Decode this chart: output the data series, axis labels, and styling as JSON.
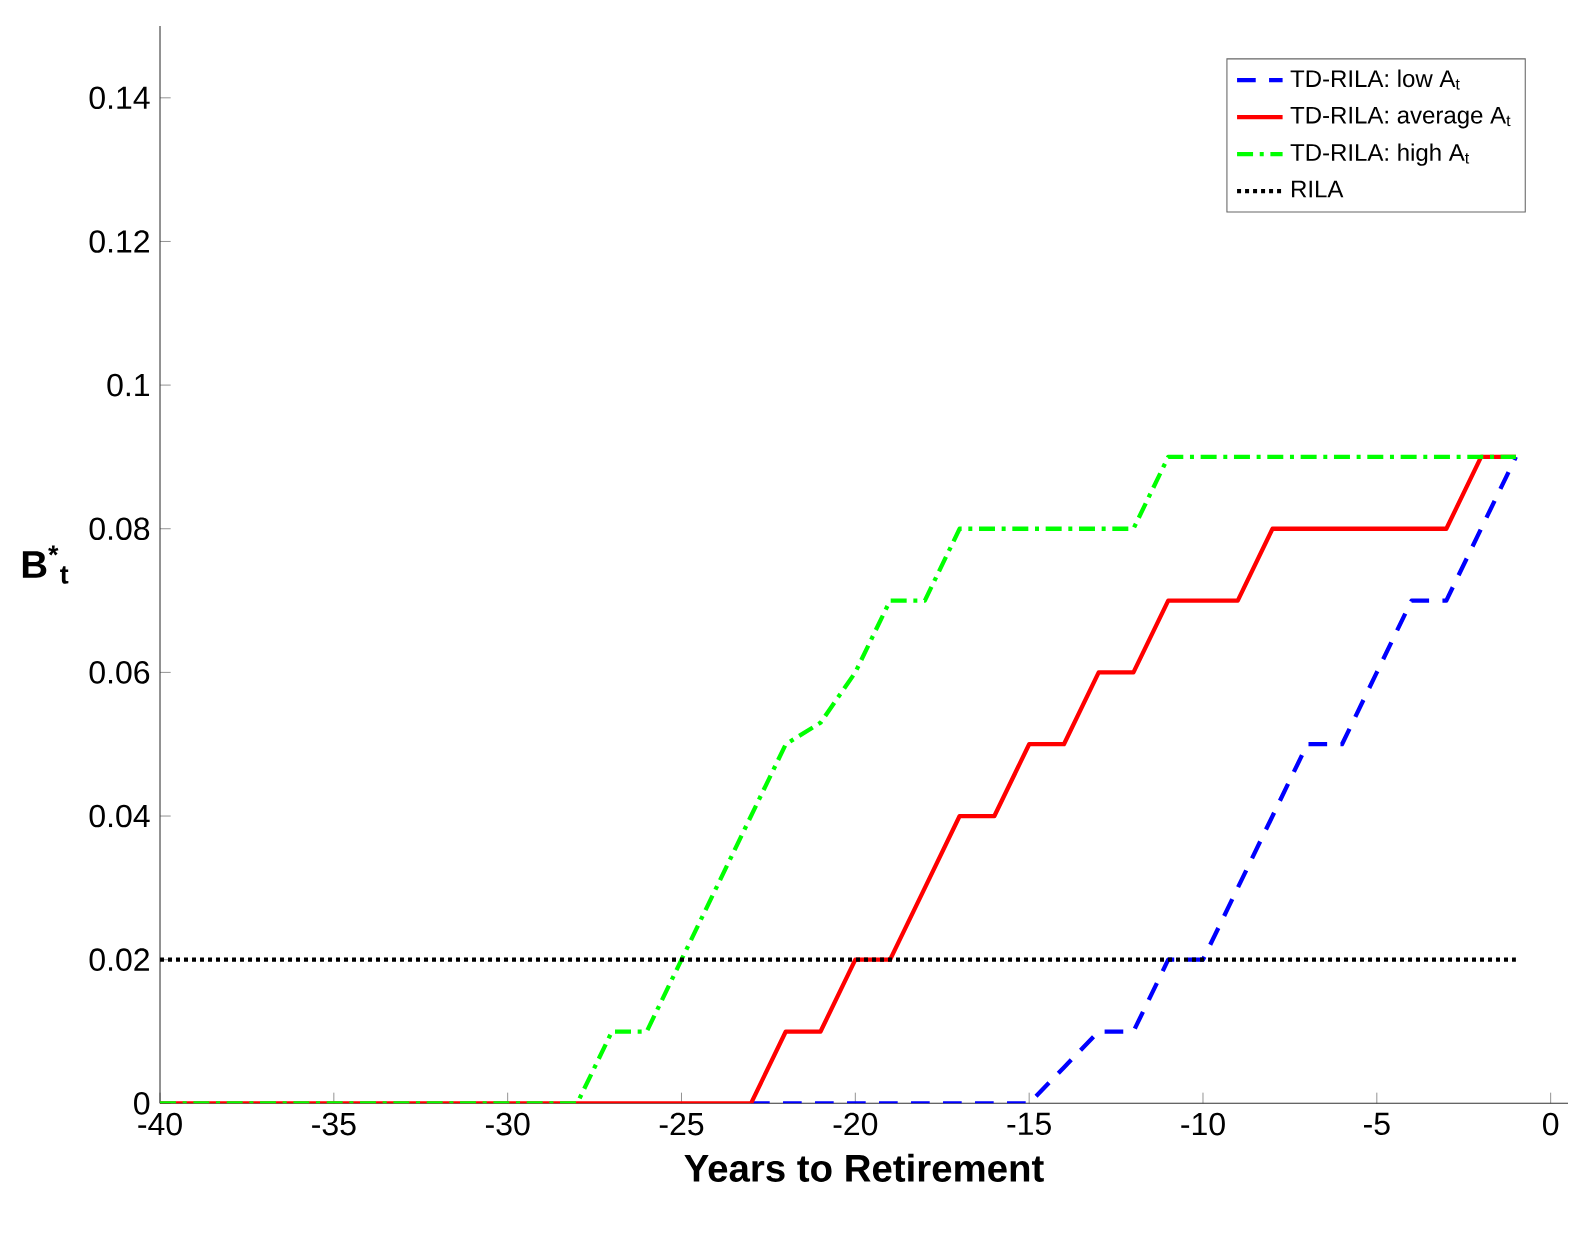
{
  "chart_data": {
    "type": "line",
    "xlabel": "Years to Retirement",
    "ylabel": "B$^{*}$$_{t}$",
    "x": [
      -40,
      -39,
      -38,
      -37,
      -36,
      -35,
      -34,
      -33,
      -32,
      -31,
      -30,
      -29,
      -28,
      -27,
      -26,
      -25,
      -24,
      -23,
      -22,
      -21,
      -20,
      -19,
      -18,
      -17,
      -16,
      -15,
      -14,
      -13,
      -12,
      -11,
      -10,
      -9,
      -8,
      -7,
      -6,
      -5,
      -4,
      -3,
      -2,
      -1
    ],
    "series": [
      {
        "name": "TD-RILA: low A$_{t}$",
        "color": "#0000ff",
        "line_style": "dashed",
        "values": [
          null,
          null,
          null,
          null,
          null,
          null,
          null,
          null,
          null,
          null,
          null,
          null,
          null,
          null,
          null,
          null,
          null,
          0,
          0,
          0,
          0,
          0,
          0,
          0,
          0,
          0,
          0.005,
          0.01,
          0.01,
          0.02,
          0.02,
          0.03,
          0.04,
          0.05,
          0.05,
          0.06,
          0.07,
          0.07,
          0.08,
          0.09
        ]
      },
      {
        "name": "TD-RILA: average A$_{t}$",
        "color": "#ff0000",
        "line_style": "solid",
        "values": [
          0,
          0,
          0,
          0,
          0,
          0,
          0,
          0,
          0,
          0,
          0,
          0,
          0,
          0,
          0,
          0,
          0,
          0,
          0.01,
          0.01,
          0.02,
          0.02,
          0.03,
          0.04,
          0.04,
          0.05,
          0.05,
          0.06,
          0.06,
          0.07,
          0.07,
          0.07,
          0.08,
          0.08,
          0.08,
          0.08,
          0.08,
          0.08,
          0.09,
          0.09
        ]
      },
      {
        "name": "TD-RILA: high A$_{t}$",
        "color": "#00ff00",
        "line_style": "dashdot",
        "values": [
          0,
          0,
          0,
          0,
          0,
          0,
          0,
          0,
          0,
          0,
          0,
          0,
          0,
          0.01,
          0.01,
          0.02,
          0.03,
          0.04,
          0.05,
          0.053,
          0.06,
          0.07,
          0.07,
          0.08,
          0.08,
          0.08,
          0.08,
          0.08,
          0.08,
          0.09,
          0.09,
          0.09,
          0.09,
          0.09,
          0.09,
          0.09,
          0.09,
          0.09,
          0.09,
          0.09
        ]
      },
      {
        "name": "RILA",
        "color": "#000000",
        "line_style": "dotted",
        "values": [
          0.02,
          0.02,
          0.02,
          0.02,
          0.02,
          0.02,
          0.02,
          0.02,
          0.02,
          0.02,
          0.02,
          0.02,
          0.02,
          0.02,
          0.02,
          0.02,
          0.02,
          0.02,
          0.02,
          0.02,
          0.02,
          0.02,
          0.02,
          0.02,
          0.02,
          0.02,
          0.02,
          0.02,
          0.02,
          0.02,
          0.02,
          0.02,
          0.02,
          0.02,
          0.02,
          0.02,
          0.02,
          0.02,
          0.02,
          0.02
        ]
      }
    ],
    "xlim": [
      -40,
      0.5
    ],
    "xticks": [
      -40,
      -35,
      -30,
      -25,
      -20,
      -15,
      -10,
      -5,
      0
    ],
    "ylim": [
      0,
      0.15
    ],
    "yticks": [
      0,
      {
        "value": 0.02,
        "label": "0.02"
      },
      {
        "value": 0.04,
        "label": "0.04"
      },
      {
        "value": 0.06,
        "label": "0.06"
      },
      {
        "value": 0.08,
        "label": "0.08"
      },
      {
        "value": 0.1,
        "label": "0.1"
      },
      {
        "value": 0.12,
        "label": "0.12"
      },
      {
        "value": 0.14,
        "label": "0.14"
      }
    ],
    "legend": "top right",
    "grid": false,
    "marker": "none"
  }
}
